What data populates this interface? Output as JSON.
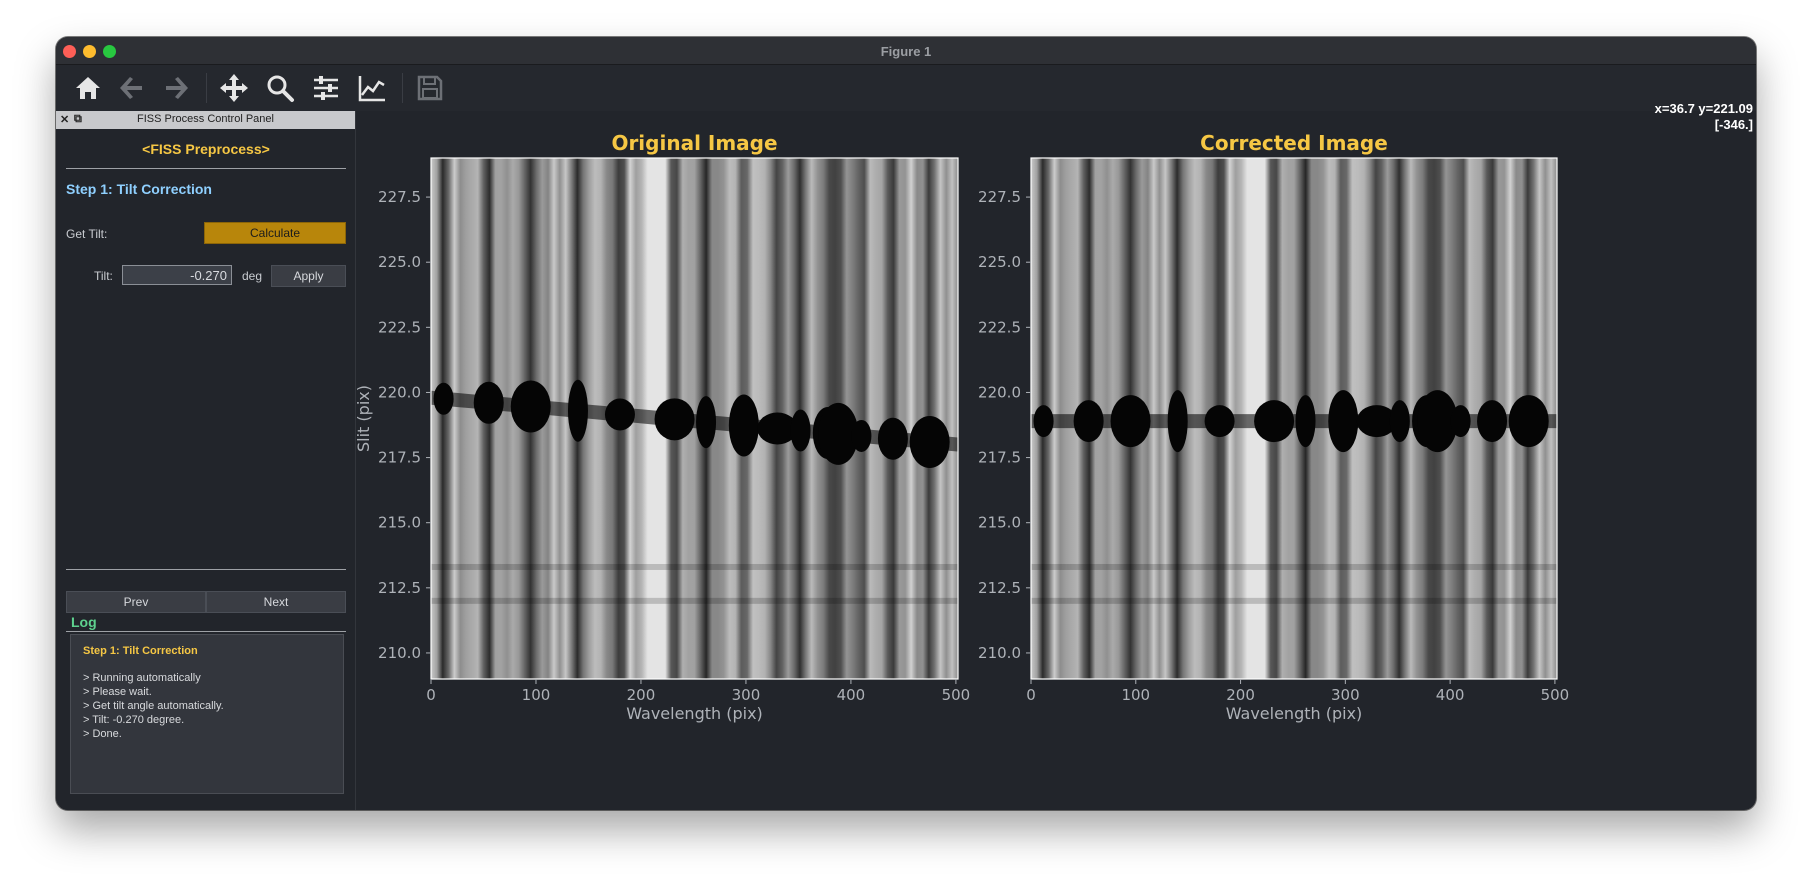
{
  "window": {
    "title": "Figure 1"
  },
  "toolbar": {
    "tools": [
      "home-icon",
      "back-arrow-icon",
      "forward-arrow-icon",
      "pan-icon",
      "zoom-icon",
      "configure-subplots-icon",
      "edit-axis-icon",
      "save-icon"
    ],
    "coords_line1": "x=36.7 y=221.09",
    "coords_line2": "[-346.]"
  },
  "panel": {
    "title": "FISS Process Control Panel",
    "heading": "<FISS Preprocess>",
    "step_title": "Step 1: Tilt Correction",
    "get_tilt_label": "Get Tilt:",
    "calculate_label": "Calculate",
    "tilt_label": "Tilt:",
    "tilt_value": "-0.270",
    "tilt_unit": "deg",
    "apply_label": "Apply",
    "prev_label": "Prev",
    "next_label": "Next",
    "log_title": "Log",
    "log_heading": "Step 1: Tilt Correction",
    "log_lines": [
      "> Running automatically",
      "> Please wait.",
      "> Get tilt angle automatically.",
      "> Tilt: -0.270 degree.",
      "> Done."
    ]
  },
  "chart_data": [
    {
      "type": "heatmap",
      "title": "Original Image",
      "xlabel": "Wavelength (pix)",
      "ylabel": "Slit (pix)",
      "xlim": [
        0,
        502
      ],
      "ylim": [
        209,
        229
      ],
      "xticks": [
        0,
        100,
        200,
        300,
        400,
        500
      ],
      "yticks": [
        210.0,
        212.5,
        215.0,
        217.5,
        220.0,
        222.5,
        225.0,
        227.5
      ],
      "colormap": "gray",
      "dark_band_center_left": 219.8,
      "dark_band_center_right": 218.0,
      "absorption_lines_x": [
        12,
        55,
        95,
        140,
        180,
        232,
        262,
        298,
        330,
        352,
        378,
        388,
        410,
        440,
        475
      ]
    },
    {
      "type": "heatmap",
      "title": "Corrected Image",
      "xlabel": "Wavelength (pix)",
      "ylabel": "",
      "xlim": [
        0,
        502
      ],
      "ylim": [
        209,
        229
      ],
      "xticks": [
        0,
        100,
        200,
        300,
        400,
        500
      ],
      "yticks": [
        210.0,
        212.5,
        215.0,
        217.5,
        220.0,
        222.5,
        225.0,
        227.5
      ],
      "colormap": "gray",
      "dark_band_center_left": 218.9,
      "dark_band_center_right": 218.9,
      "absorption_lines_x": [
        12,
        55,
        95,
        140,
        180,
        232,
        262,
        298,
        330,
        352,
        378,
        388,
        410,
        440,
        475
      ]
    }
  ],
  "colors": {
    "title": "#f6c744",
    "axis_text": "#aeb2b8",
    "step": "#8fd0ff",
    "log_title": "#5ed18e",
    "calc_button": "#b8860b"
  }
}
